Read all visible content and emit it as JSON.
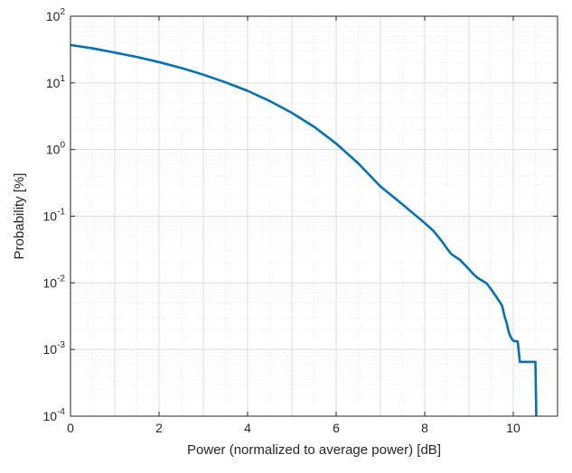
{
  "chart_data": {
    "type": "line",
    "title": "",
    "xlabel": "Power (normalized to average power) [dB]",
    "ylabel": "Probability [%]",
    "xlim": [
      0,
      11
    ],
    "ylim": [
      0.0001,
      100
    ],
    "yscale": "log",
    "grid": true,
    "minor_grid": true,
    "legend": "none",
    "x_ticks": [
      0,
      2,
      4,
      6,
      8,
      10
    ],
    "x_tick_labels": [
      "0",
      "2",
      "4",
      "6",
      "8",
      "10"
    ],
    "y_ticks": [
      0.0001,
      0.001,
      0.01,
      0.1,
      1,
      10,
      100
    ],
    "y_tick_labels": [
      {
        "base": "10",
        "exp": "-4"
      },
      {
        "base": "10",
        "exp": "-3"
      },
      {
        "base": "10",
        "exp": "-2"
      },
      {
        "base": "10",
        "exp": "-1"
      },
      {
        "base": "10",
        "exp": "0"
      },
      {
        "base": "10",
        "exp": "1"
      },
      {
        "base": "10",
        "exp": "2"
      }
    ],
    "colors": {
      "line": "#0072BD",
      "grid": "#e3e3e3",
      "axis": "#262626"
    },
    "series": [
      {
        "x": [
          0,
          0.5,
          1,
          1.5,
          2,
          2.5,
          3,
          3.5,
          4,
          4.5,
          5,
          5.5,
          6,
          6.5,
          7,
          7.5,
          8,
          8.2,
          8.4,
          8.5,
          8.6,
          8.8,
          9.0,
          9.1,
          9.2,
          9.4,
          9.5,
          9.6,
          9.7,
          9.75,
          9.8,
          9.85,
          9.9,
          9.95,
          10.0,
          10.1,
          10.15,
          10.5,
          10.52
        ],
        "y": [
          37,
          33,
          28.5,
          24.5,
          20.5,
          16.8,
          13.3,
          10.2,
          7.6,
          5.35,
          3.55,
          2.2,
          1.23,
          0.62,
          0.28,
          0.15,
          0.079,
          0.06,
          0.041,
          0.033,
          0.027,
          0.022,
          0.016,
          0.0135,
          0.0118,
          0.0098,
          0.008,
          0.0064,
          0.0051,
          0.0045,
          0.0032,
          0.0025,
          0.0018,
          0.0015,
          0.00135,
          0.00132,
          0.00065,
          0.00065,
          0.0001
        ]
      }
    ]
  }
}
